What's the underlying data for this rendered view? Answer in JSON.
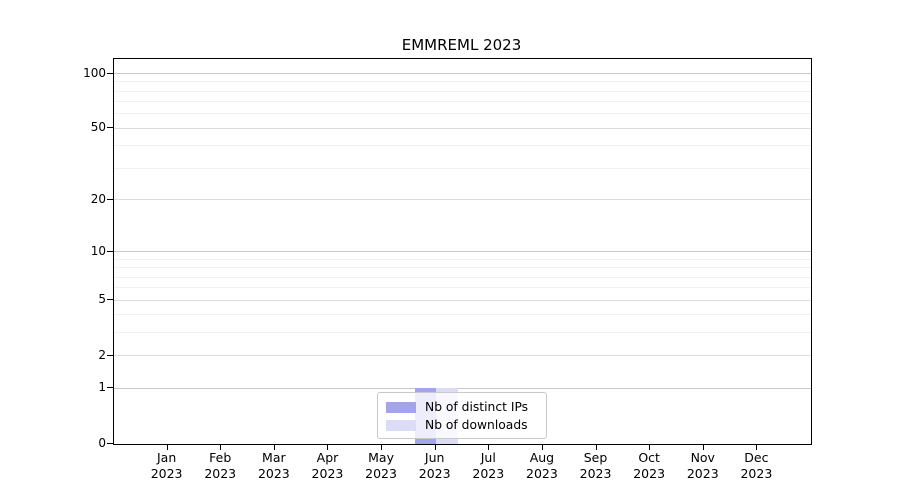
{
  "title": "EMMREML 2023",
  "chart_data": {
    "type": "bar",
    "title": "EMMREML 2023",
    "categories": [
      "Jan 2023",
      "Feb 2023",
      "Mar 2023",
      "Apr 2023",
      "May 2023",
      "Jun 2023",
      "Jul 2023",
      "Aug 2023",
      "Sep 2023",
      "Oct 2023",
      "Nov 2023",
      "Dec 2023"
    ],
    "series": [
      {
        "name": "Nb of distinct IPs",
        "color": "#a4a4ec",
        "values": [
          0,
          0,
          0,
          0,
          0,
          1,
          0,
          0,
          0,
          0,
          0,
          0
        ]
      },
      {
        "name": "Nb of downloads",
        "color": "#dcdcf7",
        "values": [
          0,
          0,
          0,
          0,
          0,
          1,
          0,
          0,
          0,
          0,
          0,
          0
        ]
      }
    ],
    "xlabel": "",
    "ylabel": "",
    "yscale": "log1p",
    "ylim": [
      0,
      120
    ],
    "ytick_labels": [
      0,
      1,
      2,
      5,
      10,
      20,
      50,
      100
    ],
    "yticks_minor": [
      1,
      2,
      3,
      4,
      5,
      6,
      7,
      8,
      9,
      10,
      20,
      30,
      40,
      50,
      60,
      70,
      80,
      90,
      100
    ],
    "yticks_power": [
      1,
      10,
      100
    ],
    "grid": "horizontal",
    "legend_position": "bottom-center"
  },
  "colors": {
    "axis": "#000000",
    "grid_power": "#c6c6c6",
    "grid_major": "#dcdcdc",
    "grid_minor": "#f0f0f0",
    "background": "#ffffff"
  }
}
